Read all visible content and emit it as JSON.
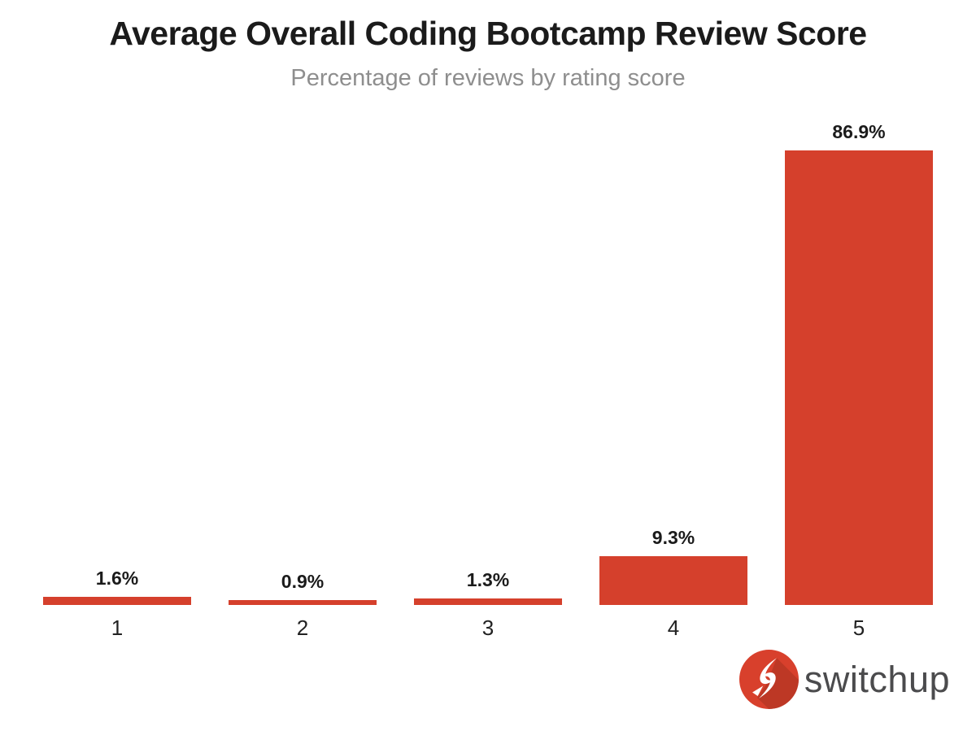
{
  "chart_data": {
    "type": "bar",
    "title": "Average Overall Coding Bootcamp Review Score",
    "subtitle": "Percentage of reviews by rating score",
    "categories": [
      "1",
      "2",
      "3",
      "4",
      "5"
    ],
    "values": [
      1.6,
      0.9,
      1.3,
      9.3,
      86.9
    ],
    "value_labels": [
      "1.6%",
      "0.9%",
      "1.3%",
      "9.3%",
      "86.9%"
    ],
    "xlabel": "",
    "ylabel": "",
    "ylim": [
      0,
      94
    ],
    "grid": false,
    "y_axis_visible": false,
    "legend": "none"
  },
  "brand": {
    "name": "switchup"
  },
  "colors": {
    "bar": "#D5402C",
    "title": "#1b1b1b",
    "subtitle": "#8e8e8e",
    "brand_text": "#4b4b4d",
    "logo_shadow": "#A83220"
  }
}
